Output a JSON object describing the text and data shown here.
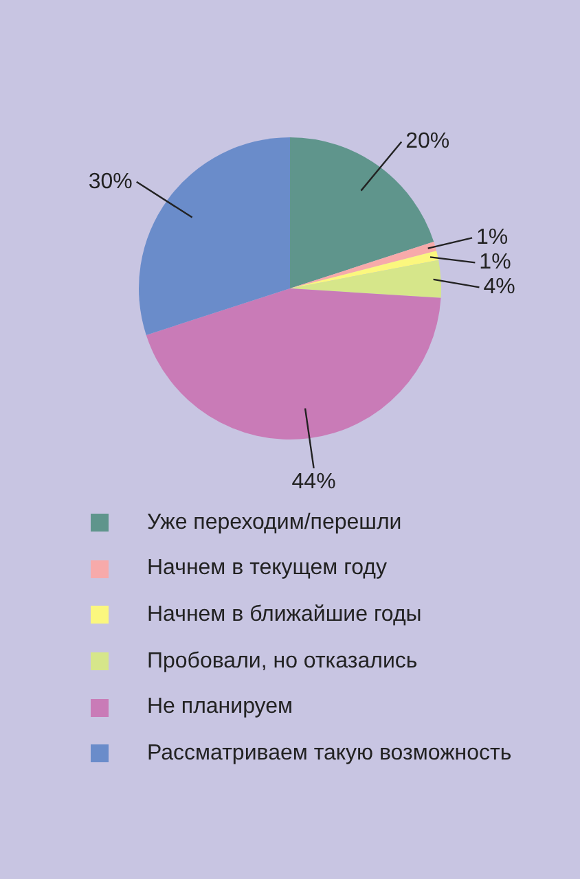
{
  "chart_data": {
    "type": "pie",
    "categories": [
      "Уже переходим/перешли",
      "Начнем в текущем году",
      "Начнем в ближайшие годы",
      "Пробовали, но отказались",
      "Не планируем",
      "Рассматриваем такую возможность"
    ],
    "values": [
      20,
      1,
      1,
      4,
      44,
      30
    ],
    "colors": [
      "#5f958c",
      "#f7aaaa",
      "#fbf77e",
      "#d6e68a",
      "#c97bb7",
      "#6a8cca"
    ],
    "value_labels": [
      "20%",
      "1%",
      "1%",
      "4%",
      "44%",
      "30%"
    ],
    "legend": "bottom"
  }
}
